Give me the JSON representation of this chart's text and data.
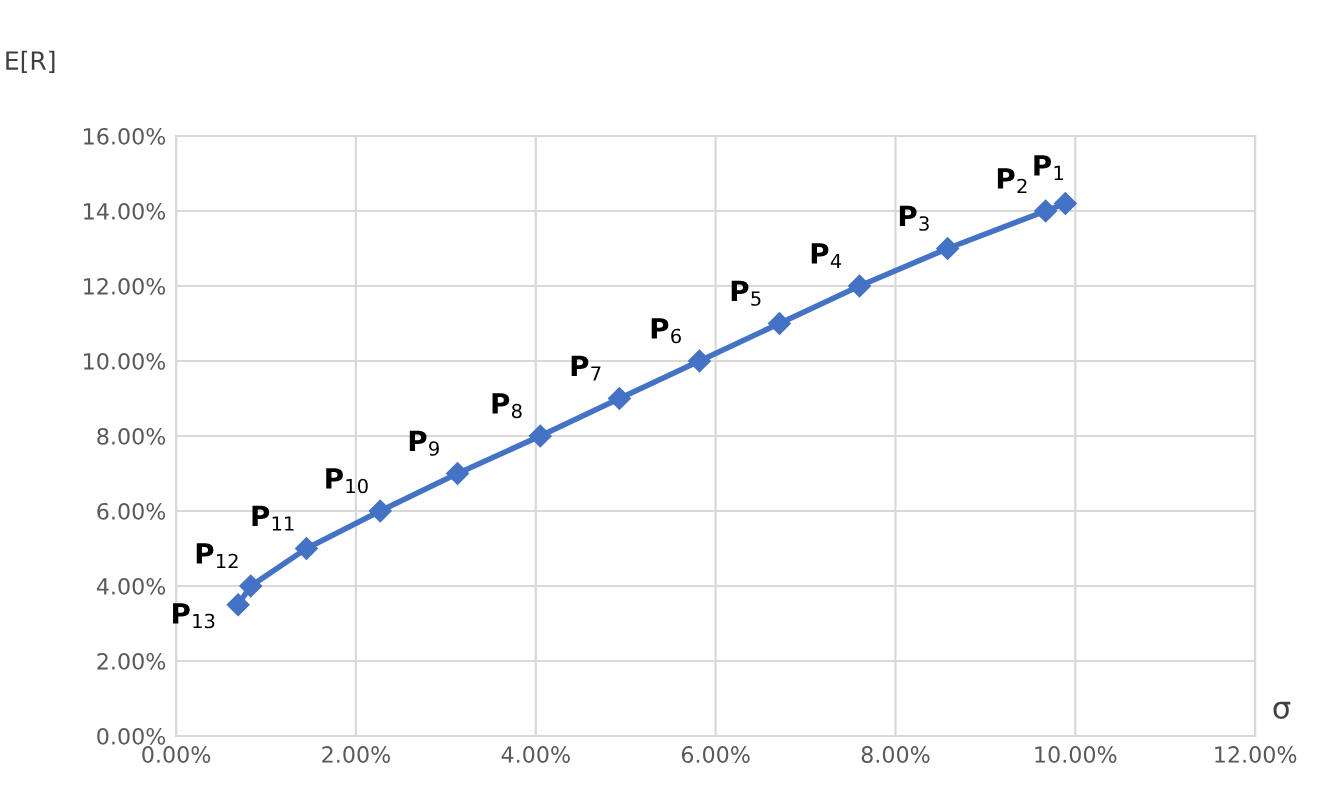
{
  "chart_data": {
    "type": "line",
    "xlabel": "σ",
    "ylabel": "E[R]",
    "series": [
      {
        "color": "#4472c4",
        "x": [
          9.89,
          9.67,
          8.58,
          7.6,
          6.71,
          5.82,
          4.93,
          4.05,
          3.13,
          2.27,
          1.45,
          0.83,
          0.69
        ],
        "values": [
          14.2,
          14.0,
          13.0,
          12.0,
          11.0,
          10.0,
          9.0,
          8.0,
          7.0,
          6.0,
          5.0,
          4.0,
          3.5
        ]
      }
    ],
    "annotations": [
      {
        "text": "P$_{1}$",
        "x": 9.89,
        "y": 14.2
      },
      {
        "text": "P$_{2}$",
        "x": 9.67,
        "y": 14.0
      },
      {
        "text": "P$_{3}$",
        "x": 8.58,
        "y": 13.0
      },
      {
        "text": "P$_{4}$",
        "x": 7.6,
        "y": 12.0
      },
      {
        "text": "P$_{5}$",
        "x": 6.71,
        "y": 11.0
      },
      {
        "text": "P$_{6}$",
        "x": 5.82,
        "y": 10.0
      },
      {
        "text": "P$_{7}$",
        "x": 4.93,
        "y": 9.0
      },
      {
        "text": "P$_{8}$",
        "x": 4.05,
        "y": 8.0
      },
      {
        "text": "P$_{9}$",
        "x": 3.13,
        "y": 7.0
      },
      {
        "text": "P$_{10}$",
        "x": 2.27,
        "y": 6.0
      },
      {
        "text": "P$_{11}$",
        "x": 1.45,
        "y": 5.0
      },
      {
        "text": "P$_{12}$",
        "x": 0.83,
        "y": 4.0
      },
      {
        "text": "P$_{13}$",
        "x": 0.69,
        "y": 3.5
      }
    ],
    "xlim": [
      0,
      12
    ],
    "ylim": [
      0,
      16
    ],
    "xticks": [
      {
        "value": 0,
        "label": "0.00%"
      },
      {
        "value": 2,
        "label": "2.00%"
      },
      {
        "value": 4,
        "label": "4.00%"
      },
      {
        "value": 6,
        "label": "6.00%"
      },
      {
        "value": 8,
        "label": "8.00%"
      },
      {
        "value": 10,
        "label": "10.00%"
      },
      {
        "value": 12,
        "label": "12.00%"
      }
    ],
    "yticks": [
      {
        "value": 0,
        "label": "0.00%"
      },
      {
        "value": 2,
        "label": "2.00%"
      },
      {
        "value": 4,
        "label": "4.00%"
      },
      {
        "value": 6,
        "label": "6.00%"
      },
      {
        "value": 8,
        "label": "8.00%"
      },
      {
        "value": 10,
        "label": "10.00%"
      },
      {
        "value": 12,
        "label": "12.00%"
      },
      {
        "value": 14,
        "label": "14.00%"
      },
      {
        "value": 16,
        "label": "16.00%"
      }
    ],
    "grid": true,
    "marker": "diamond",
    "line_style": "solid"
  }
}
